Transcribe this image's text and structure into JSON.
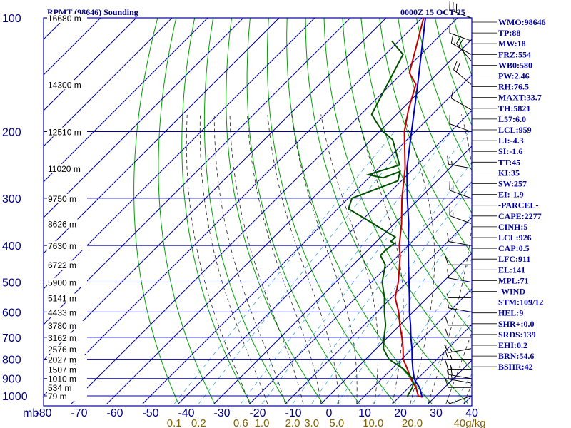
{
  "chart_data": {
    "type": "skew-t log-p sounding",
    "title": "RPMT (98646) Sounding",
    "valid_time": "0000Z 15 OCT 25",
    "xlabel": "mb",
    "pressure_ticks": [
      "100",
      "200",
      "300",
      "400",
      "500",
      "600",
      "700",
      "800",
      "900",
      "1000"
    ],
    "pressure_levels": [
      100,
      200,
      300,
      400,
      500,
      600,
      700,
      800,
      900,
      1000
    ],
    "temperature_ticks": [
      "-80",
      "-70",
      "-60",
      "-50",
      "-40",
      "-30",
      "-20",
      "-10",
      "0",
      "10",
      "20",
      "30",
      "40"
    ],
    "temperature_values": [
      -80,
      -70,
      -60,
      -50,
      -40,
      -30,
      -20,
      -10,
      0,
      10,
      20,
      30,
      40
    ],
    "mixing_ratio_ticks": [
      "0.1",
      "0.2",
      "0.6",
      "1.0",
      "2.0",
      "3.0",
      "5.0",
      "10.0",
      "20.0",
      "40g/kg"
    ],
    "mixing_ratio_values": [
      0.1,
      0.2,
      0.6,
      1.0,
      2.0,
      3.0,
      5.0,
      10.0,
      20.0,
      40.0
    ],
    "height_labels": [
      {
        "p": 100,
        "text": "16680 m"
      },
      {
        "p": 150,
        "text": "14300 m"
      },
      {
        "p": 200,
        "text": "12510 m"
      },
      {
        "p": 250,
        "text": "11020 m"
      },
      {
        "p": 300,
        "text": "9750 m"
      },
      {
        "p": 350,
        "text": "8626 m"
      },
      {
        "p": 400,
        "text": "7630 m"
      },
      {
        "p": 450,
        "text": "6722 m"
      },
      {
        "p": 500,
        "text": "5900 m"
      },
      {
        "p": 550,
        "text": "5141 m"
      },
      {
        "p": 600,
        "text": "4433 m"
      },
      {
        "p": 650,
        "text": "3780 m"
      },
      {
        "p": 700,
        "text": "3162 m"
      },
      {
        "p": 750,
        "text": "2576 m"
      },
      {
        "p": 800,
        "text": "2027 m"
      },
      {
        "p": 850,
        "text": "1507 m"
      },
      {
        "p": 900,
        "text": "1010 m"
      },
      {
        "p": 950,
        "text": "534 m"
      },
      {
        "p": 1000,
        "text": "79 m"
      }
    ],
    "series": [
      {
        "name": "temperature",
        "color": "#c00000",
        "points": [
          [
            1008,
            26.5
          ],
          [
            1000,
            25.0
          ],
          [
            950,
            22.0
          ],
          [
            925,
            20.0
          ],
          [
            900,
            18.0
          ],
          [
            850,
            14.5
          ],
          [
            800,
            10.5
          ],
          [
            750,
            7.5
          ],
          [
            700,
            4.0
          ],
          [
            650,
            0.0
          ],
          [
            600,
            -4.0
          ],
          [
            550,
            -9.0
          ],
          [
            500,
            -12.5
          ],
          [
            450,
            -17.0
          ],
          [
            425,
            -19.5
          ],
          [
            400,
            -22.5
          ],
          [
            350,
            -28.0
          ],
          [
            300,
            -35.0
          ],
          [
            250,
            -42.5
          ],
          [
            200,
            -53.0
          ],
          [
            175,
            -58.0
          ],
          [
            150,
            -63.0
          ],
          [
            140,
            -68.0
          ],
          [
            100,
            -79.5
          ]
        ]
      },
      {
        "name": "dewpoint",
        "color": "#005000",
        "points": [
          [
            1008,
            22.5
          ],
          [
            1000,
            22.0
          ],
          [
            950,
            21.0
          ],
          [
            925,
            20.0
          ],
          [
            900,
            18.5
          ],
          [
            850,
            13.5
          ],
          [
            800,
            6.5
          ],
          [
            750,
            2.0
          ],
          [
            700,
            -1.0
          ],
          [
            650,
            -4.0
          ],
          [
            600,
            -8.0
          ],
          [
            550,
            -12.0
          ],
          [
            500,
            -17.0
          ],
          [
            450,
            -21.0
          ],
          [
            425,
            -25.0
          ],
          [
            410,
            -25.0
          ],
          [
            395,
            -24.5
          ],
          [
            390,
            -26.0
          ],
          [
            380,
            -26.0
          ],
          [
            350,
            -36.0
          ],
          [
            320,
            -47.0
          ],
          [
            300,
            -49.0
          ],
          [
            270,
            -41.0
          ],
          [
            255,
            -43.0
          ],
          [
            265,
            -46.0
          ],
          [
            260,
            -51.0
          ],
          [
            245,
            -45.0
          ],
          [
            210,
            -54.0
          ],
          [
            200,
            -59.0
          ],
          [
            190,
            -63.0
          ],
          [
            180,
            -67.0
          ],
          [
            125,
            -75.0
          ],
          [
            115,
            -82.0
          ]
        ]
      },
      {
        "name": "parcel",
        "color": "#0000c0",
        "points": [
          [
            1008,
            26.5
          ],
          [
            1000,
            26.0
          ],
          [
            950,
            23.0
          ],
          [
            926,
            21.0
          ],
          [
            900,
            19.0
          ],
          [
            850,
            16.0
          ],
          [
            800,
            13.0
          ],
          [
            750,
            10.0
          ],
          [
            700,
            6.5
          ],
          [
            650,
            3.0
          ],
          [
            600,
            -1.0
          ],
          [
            550,
            -5.0
          ],
          [
            500,
            -9.5
          ],
          [
            450,
            -14.5
          ],
          [
            400,
            -20.0
          ],
          [
            350,
            -26.0
          ],
          [
            300,
            -33.5
          ],
          [
            250,
            -42.0
          ],
          [
            200,
            -51.0
          ],
          [
            150,
            -62.5
          ],
          [
            100,
            -79.0
          ]
        ]
      }
    ],
    "wind_barbs": [
      {
        "p": 1000,
        "dir": 250,
        "spd": 5
      },
      {
        "p": 950,
        "dir": 270,
        "spd": 10
      },
      {
        "p": 925,
        "dir": 280,
        "spd": 15
      },
      {
        "p": 900,
        "dir": 280,
        "spd": 20
      },
      {
        "p": 850,
        "dir": 270,
        "spd": 15
      },
      {
        "p": 800,
        "dir": 270,
        "spd": 15
      },
      {
        "p": 750,
        "dir": 260,
        "spd": 15
      },
      {
        "p": 700,
        "dir": 270,
        "spd": 10
      },
      {
        "p": 650,
        "dir": 270,
        "spd": 10
      },
      {
        "p": 600,
        "dir": 280,
        "spd": 10
      },
      {
        "p": 550,
        "dir": 270,
        "spd": 5
      },
      {
        "p": 500,
        "dir": 280,
        "spd": 10
      },
      {
        "p": 450,
        "dir": 270,
        "spd": 10
      },
      {
        "p": 400,
        "dir": 280,
        "spd": 10
      },
      {
        "p": 350,
        "dir": 290,
        "spd": 15
      },
      {
        "p": 300,
        "dir": 290,
        "spd": 15
      },
      {
        "p": 250,
        "dir": 280,
        "spd": 15
      },
      {
        "p": 200,
        "dir": 290,
        "spd": 10
      },
      {
        "p": 175,
        "dir": 300,
        "spd": 10
      },
      {
        "p": 150,
        "dir": 310,
        "spd": 20
      },
      {
        "p": 130,
        "dir": 320,
        "spd": 20
      },
      {
        "p": 125,
        "dir": 300,
        "spd": 15
      },
      {
        "p": 115,
        "dir": 290,
        "spd": 10
      },
      {
        "p": 100,
        "dir": 290,
        "spd": 30
      }
    ],
    "indices": [
      "WMO:98646",
      "TP:88",
      "MW:18",
      "FRZ:554",
      "WB0:580",
      "PW:2.46",
      "RH:76.5",
      "MAXT:33.7",
      "TH:5821",
      "L57:6.0",
      "LCL:959",
      "LI:-4.3",
      "SI:-1.6",
      "TT:45",
      "KI:35",
      "SW:257",
      "EI:-1.9",
      "-PARCEL-",
      "CAPE:2277",
      "CINH:5",
      "LCL:926",
      "CAP:0.5",
      "LFC:911",
      "EL:141",
      "MPL:71",
      "-WIND-",
      "STM:109/12",
      "HEL:9",
      "SHR+:0.0",
      "SRDS:139",
      "EHI:0.2",
      "BRN:54.6",
      "BSHR:42"
    ],
    "colors": {
      "grid": "#0000a0",
      "dry_adiabat": "#00a000",
      "moist_adiabat": "#202020",
      "mixing_ratio": "#40a0e0",
      "mixing_label": "#806000",
      "axis_text": "#000080",
      "height_text": "#000000"
    },
    "xlim": [
      -80,
      40
    ],
    "ylim": [
      100,
      1050
    ]
  }
}
